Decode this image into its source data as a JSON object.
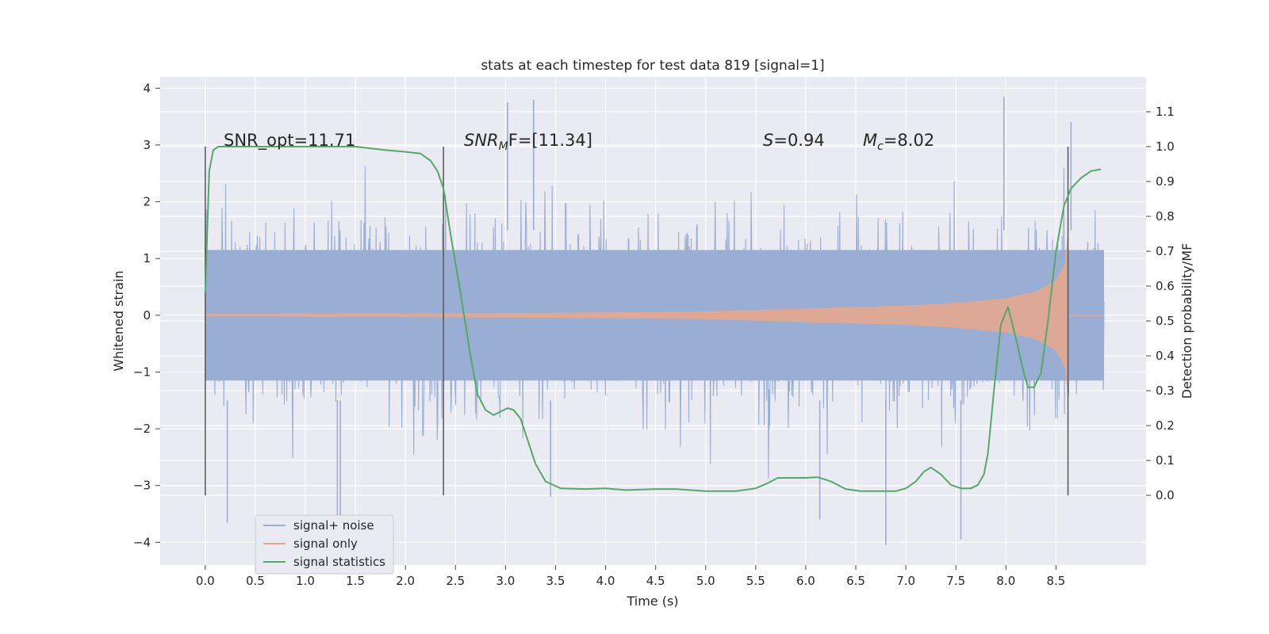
{
  "chart_data": {
    "type": "line",
    "title": "stats at each timestep for test data 819 [signal=1]",
    "xlabel": "Time (s)",
    "ylabel_left": "Whitened strain",
    "ylabel_right": "Detection probability/MF",
    "xlim": [
      -0.45,
      9.4
    ],
    "ylim_left": [
      -4.4,
      4.2
    ],
    "ylim_right": [
      -0.2,
      1.2
    ],
    "x_ticks": [
      "0.0",
      "0.5",
      "1.0",
      "1.5",
      "2.0",
      "2.5",
      "3.0",
      "3.5",
      "4.0",
      "4.5",
      "5.0",
      "5.5",
      "6.0",
      "6.5",
      "7.0",
      "7.5",
      "8.0",
      "8.5"
    ],
    "y_ticks_left": [
      "4",
      "3",
      "2",
      "1",
      "0",
      "−1",
      "−2",
      "−3",
      "−4"
    ],
    "y_ticks_right": [
      "1.1",
      "1.0",
      "0.9",
      "0.8",
      "0.7",
      "0.6",
      "0.5",
      "0.4",
      "0.3",
      "0.2",
      "0.1",
      "0.0"
    ],
    "annotations": {
      "snr_opt": "SNR_opt=11.71",
      "snr_mf_main": "SNR",
      "snr_mf_sub": "M",
      "snr_mf_tail": "F=[11.34]",
      "s_main": "S",
      "s_tail": "=0.94",
      "mc_main": "M",
      "mc_sub": "c",
      "mc_tail": "=8.02"
    },
    "vertical_lines_x": [
      0.0,
      2.38,
      8.62
    ],
    "noise_x_range": [
      0.0,
      8.98
    ],
    "noise_amplitude_typical": 2.0,
    "noise_extremes": [
      {
        "x": 0.22,
        "y": -3.65
      },
      {
        "x": 1.32,
        "y": -3.6
      },
      {
        "x": 1.35,
        "y": -3.55
      },
      {
        "x": 3.02,
        "y": 3.75
      },
      {
        "x": 3.28,
        "y": 3.8
      },
      {
        "x": 3.45,
        "y": -3.2
      },
      {
        "x": 6.14,
        "y": -3.6
      },
      {
        "x": 6.8,
        "y": -4.05
      },
      {
        "x": 7.55,
        "y": -3.95
      },
      {
        "x": 7.98,
        "y": 3.85
      },
      {
        "x": 8.65,
        "y": 3.4
      }
    ],
    "signal_envelope": {
      "t": [
        0.0,
        2.0,
        4.0,
        5.0,
        6.0,
        7.0,
        7.5,
        8.0,
        8.3,
        8.5,
        8.6,
        8.62
      ],
      "amp": [
        0.02,
        0.03,
        0.05,
        0.07,
        0.12,
        0.17,
        0.22,
        0.3,
        0.42,
        0.62,
        0.95,
        1.5
      ]
    },
    "series": [
      {
        "name": "signal statistics",
        "axis": "right",
        "x": [
          0.0,
          0.04,
          0.08,
          0.13,
          0.2,
          0.3,
          0.5,
          1.0,
          1.5,
          1.8,
          2.0,
          2.15,
          2.25,
          2.32,
          2.38,
          2.45,
          2.55,
          2.65,
          2.72,
          2.8,
          2.88,
          2.95,
          3.02,
          3.08,
          3.15,
          3.22,
          3.3,
          3.4,
          3.55,
          3.8,
          4.0,
          4.2,
          4.5,
          4.7,
          5.0,
          5.3,
          5.5,
          5.62,
          5.72,
          5.85,
          6.0,
          6.12,
          6.25,
          6.4,
          6.55,
          6.7,
          6.9,
          7.0,
          7.1,
          7.18,
          7.25,
          7.35,
          7.45,
          7.55,
          7.65,
          7.72,
          7.78,
          7.82,
          7.88,
          7.95,
          8.02,
          8.1,
          8.18,
          8.22,
          8.28,
          8.35,
          8.42,
          8.5,
          8.58,
          8.65,
          8.75,
          8.85,
          8.95
        ],
        "y": [
          0.58,
          0.93,
          0.99,
          1.0,
          1.0,
          1.0,
          1.0,
          1.0,
          1.0,
          0.99,
          0.985,
          0.98,
          0.96,
          0.93,
          0.88,
          0.75,
          0.58,
          0.4,
          0.29,
          0.245,
          0.23,
          0.24,
          0.25,
          0.245,
          0.22,
          0.16,
          0.09,
          0.04,
          0.02,
          0.018,
          0.02,
          0.015,
          0.018,
          0.018,
          0.012,
          0.012,
          0.02,
          0.035,
          0.05,
          0.05,
          0.05,
          0.052,
          0.04,
          0.018,
          0.012,
          0.012,
          0.012,
          0.02,
          0.04,
          0.068,
          0.08,
          0.06,
          0.03,
          0.02,
          0.02,
          0.03,
          0.06,
          0.12,
          0.3,
          0.49,
          0.54,
          0.45,
          0.35,
          0.31,
          0.31,
          0.35,
          0.5,
          0.7,
          0.83,
          0.88,
          0.91,
          0.93,
          0.935
        ]
      },
      {
        "name": "signal+ noise",
        "axis": "left"
      },
      {
        "name": "signal only",
        "axis": "left"
      }
    ],
    "legend": {
      "position": "lower-left",
      "entries": [
        {
          "label": "signal+ noise",
          "color": "#9aadd3"
        },
        {
          "label": "signal only",
          "color": "#e6a78f"
        },
        {
          "label": "signal statistics",
          "color": "#55a868"
        }
      ]
    },
    "grid": true,
    "colors": {
      "background": "#eaeaf2",
      "grid": "#ffffff",
      "noise": "#9aadd3",
      "signal": "#e6a78f",
      "statistics": "#55a868",
      "vline": "#555555"
    }
  }
}
